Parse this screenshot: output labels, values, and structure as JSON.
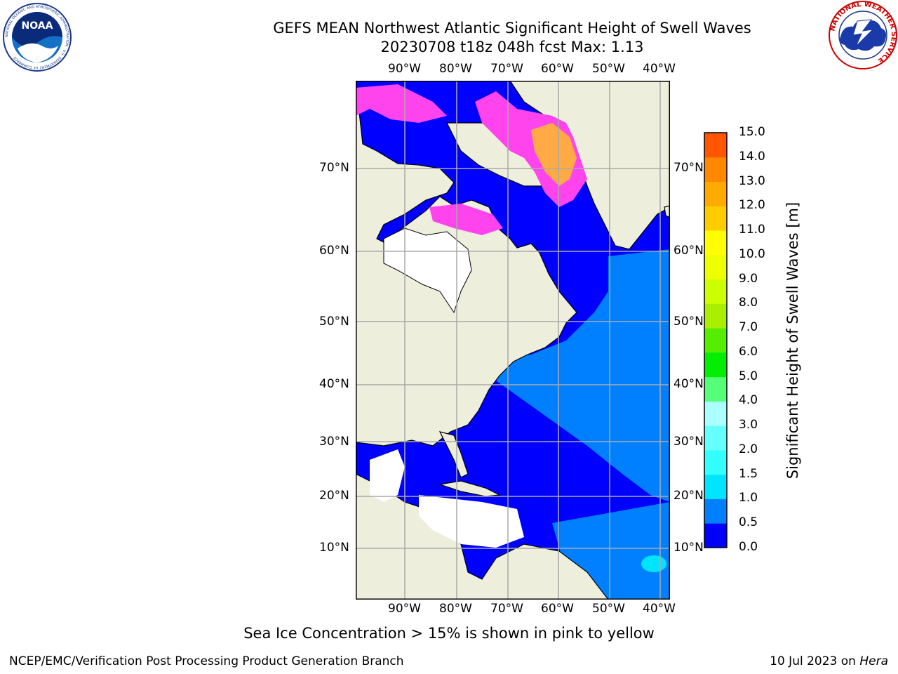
{
  "title_line1": "GEFS MEAN Northwest Atlantic Significant Height of Swell Waves",
  "title_line2": "20230708 t18z 048h fcst   Max: 1.13",
  "lon_labels": [
    "90°W",
    "80°W",
    "70°W",
    "60°W",
    "50°W",
    "40°W"
  ],
  "lat_labels": [
    "70°N",
    "60°N",
    "50°N",
    "40°N",
    "30°N",
    "20°N",
    "10°N"
  ],
  "colorbar": {
    "label": "Significant Height of Swell Waves [m]",
    "ticks": [
      "15.0",
      "14.0",
      "13.0",
      "12.0",
      "11.0",
      "10.0",
      "9.0",
      "8.0",
      "7.0",
      "6.0",
      "5.0",
      "4.0",
      "3.0",
      "2.0",
      "1.5",
      "1.0",
      "0.5",
      "0.0"
    ],
    "colors": [
      "#0000ff",
      "#0080ff",
      "#00e5ff",
      "#33ffff",
      "#66ffff",
      "#aaffff",
      "#55ff77",
      "#00ee00",
      "#55ee00",
      "#aaee00",
      "#ccff00",
      "#eeff00",
      "#ffff00",
      "#ffcc00",
      "#ffaa00",
      "#ff8800",
      "#ff5500",
      "#ff2200",
      "#ff0000"
    ]
  },
  "note": "Sea Ice Concentration > 15% is shown in pink to yellow",
  "footer_left": "NCEP/EMC/Verification Post Processing Product Generation Branch",
  "footer_date": "10 Jul 2023 on ",
  "footer_host": "Hera",
  "logos": {
    "noaa_text": "NOAA",
    "noaa_ring": "NATIONAL OCEANIC AND ATMOSPHERIC ADMINISTRATION · U.S. DEPARTMENT OF COMMERCE",
    "nws_ring": "NATIONAL WEATHER SERVICE"
  },
  "colors": {
    "land": "#eeeedd",
    "ocean_low": "#0000ff",
    "ocean_mid": "#0080ff",
    "ocean_high": "#00e5ff",
    "ice": "#ff44ee",
    "ice_core": "#ffaa44",
    "grid": "#aaaaaa"
  }
}
